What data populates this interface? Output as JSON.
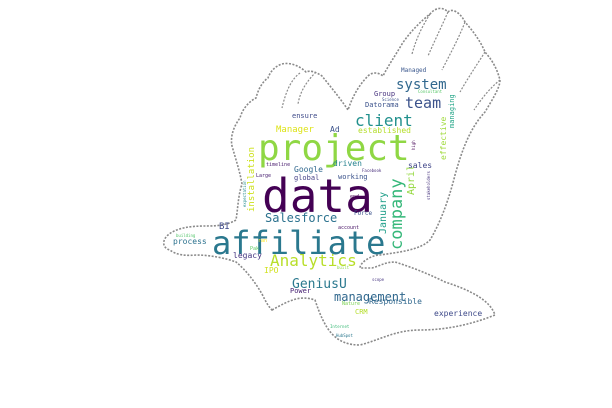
{
  "colors": {
    "background": "#ffffff",
    "silhouette_fill": "#ffffff",
    "silhouette_outline": "#8a8a8a",
    "palette": [
      "#440154",
      "#482878",
      "#3e4a89",
      "#31688e",
      "#26828e",
      "#1f9e89",
      "#35b779",
      "#6ece58",
      "#b5de2b",
      "#fde725"
    ]
  },
  "silhouette": {
    "shape": "eagle-with-spread-wings"
  },
  "words": [
    {
      "text": "data",
      "color": "#440154"
    },
    {
      "text": "project",
      "color": "#8fd744"
    },
    {
      "text": "affiliate",
      "color": "#2a788e"
    },
    {
      "text": "client",
      "color": "#21908d"
    },
    {
      "text": "team",
      "color": "#3b528b"
    },
    {
      "text": "system",
      "color": "#31688e"
    },
    {
      "text": "company",
      "color": "#35b779"
    },
    {
      "text": "Analytics",
      "color": "#b8de29"
    },
    {
      "text": "GeniusU",
      "color": "#2a788e"
    },
    {
      "text": "management",
      "color": "#31688e"
    },
    {
      "text": "Salesforce",
      "color": "#2c728e"
    },
    {
      "text": "January",
      "color": "#1f9e89"
    },
    {
      "text": "April",
      "color": "#95d840"
    },
    {
      "text": "installation",
      "color": "#cde11d"
    },
    {
      "text": "Manager",
      "color": "#dde318"
    },
    {
      "text": "Ad",
      "color": "#3b528b"
    },
    {
      "text": "ensure",
      "color": "#3e4a89"
    },
    {
      "text": "established",
      "color": "#b5de2b"
    },
    {
      "text": "effective",
      "color": "#9fda3a"
    },
    {
      "text": "managing",
      "color": "#20a486"
    },
    {
      "text": "Datorama",
      "color": "#3b528b"
    },
    {
      "text": "Group",
      "color": "#46327e"
    },
    {
      "text": "Managed",
      "color": "#39568c"
    },
    {
      "text": "Consultant",
      "color": "#56c667"
    },
    {
      "text": "Science",
      "color": "#3b528b"
    },
    {
      "text": "high",
      "color": "#440154"
    },
    {
      "text": "Google",
      "color": "#31688e"
    },
    {
      "text": "driven",
      "color": "#26828e"
    },
    {
      "text": "sales",
      "color": "#404688"
    },
    {
      "text": "Facebook",
      "color": "#472d7b"
    },
    {
      "text": "global",
      "color": "#433e85"
    },
    {
      "text": "working",
      "color": "#3b528b"
    },
    {
      "text": "stakeholders",
      "color": "#46337e"
    },
    {
      "text": "timeline",
      "color": "#481b6d"
    },
    {
      "text": "Large",
      "color": "#482071"
    },
    {
      "text": "end",
      "color": "#440154"
    },
    {
      "text": "Force",
      "color": "#3b528b"
    },
    {
      "text": "account",
      "color": "#471365"
    },
    {
      "text": "process",
      "color": "#2c728e"
    },
    {
      "text": "BI",
      "color": "#3e4989"
    },
    {
      "text": "legacy",
      "color": "#453581"
    },
    {
      "text": "IPO",
      "color": "#d0e11c"
    },
    {
      "text": "building",
      "color": "#52c569"
    },
    {
      "text": "Power",
      "color": "#482173"
    },
    {
      "text": "built",
      "color": "#8bd646"
    },
    {
      "text": "scope",
      "color": "#463480"
    },
    {
      "text": "Nature",
      "color": "#7ad151"
    },
    {
      "text": "Responsible",
      "color": "#31688e"
    },
    {
      "text": "CRM",
      "color": "#b5de2b"
    },
    {
      "text": "experience",
      "color": "#3e4a89"
    },
    {
      "text": "Internet",
      "color": "#3aba76"
    },
    {
      "text": "HubSpot",
      "color": "#2a788e"
    },
    {
      "text": "expectation",
      "color": "#228c8d"
    },
    {
      "text": "ran",
      "color": "#fde725"
    },
    {
      "text": "Pak",
      "color": "#5ec962"
    }
  ]
}
